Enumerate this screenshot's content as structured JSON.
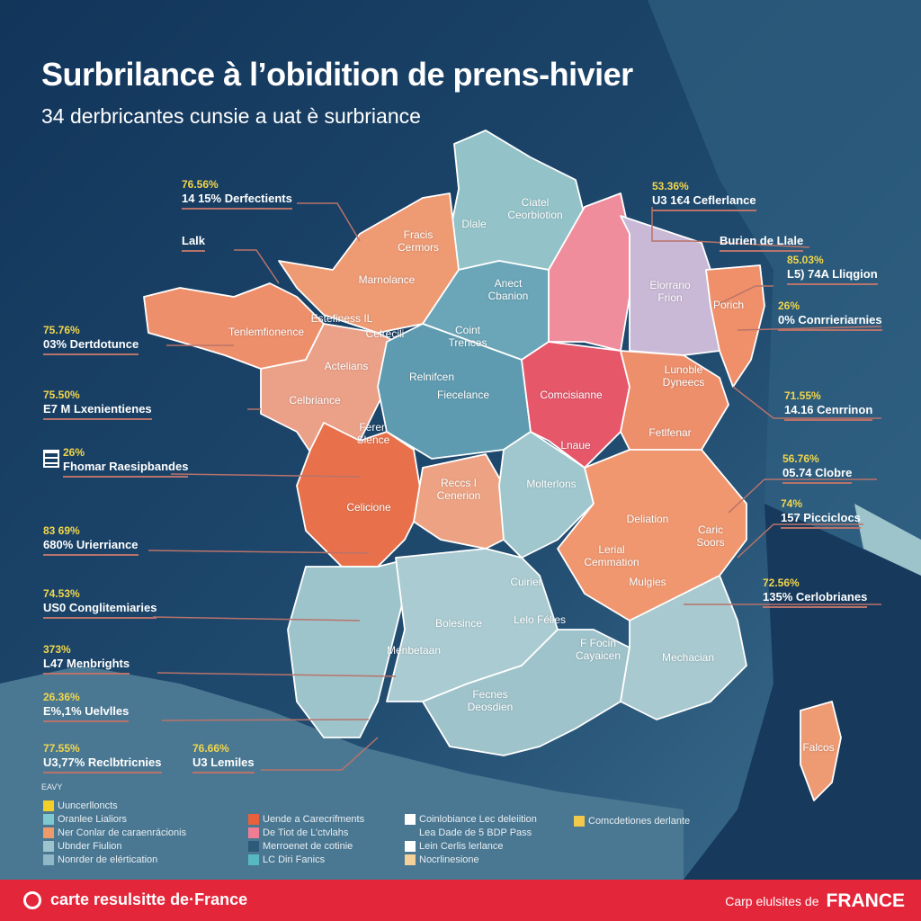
{
  "header": {
    "title": "Surbrilance à l’obidition de prens-hivier",
    "subtitle": "34 derbricantes cunsie a uat è surbriance"
  },
  "colors": {
    "navy": "#13395c",
    "slate": "#3b6d8a",
    "highlight": "#f2d64b",
    "footer": "#e3263a"
  },
  "callouts_left": [
    {
      "pct": "76.56%",
      "label": "14 15% Derfectients"
    },
    {
      "pct": "",
      "label": "Lalk"
    },
    {
      "pct": "75.76%",
      "label": "03% Dertdotunce"
    },
    {
      "pct": "75.50%",
      "label": "E7 M Lxenientienes"
    },
    {
      "pct": "26%",
      "label": "Fhomar Raesipbandes"
    },
    {
      "pct": "83 69%",
      "label": "680% Urierriance"
    },
    {
      "pct": "74.53%",
      "label": "US0 Conglitemiaries"
    },
    {
      "pct": "373%",
      "label": "L47 Menbrights"
    },
    {
      "pct": "26.36%",
      "label": "E%,1% Uelvlles"
    },
    {
      "pct": "77.55%",
      "label": "U3,77% Reclbtricnies"
    },
    {
      "pct": "76.66%",
      "label": "U3 Lemiles"
    }
  ],
  "callouts_right": [
    {
      "pct": "53.36%",
      "label": "U3 1€4 Ceflerlance"
    },
    {
      "pct": "",
      "label": "Burien de Llale"
    },
    {
      "pct": "85.03%",
      "label": "L5) 74A Lliqgion"
    },
    {
      "pct": "26%",
      "label": "0% Conrrieriarnies"
    },
    {
      "pct": "71.55%",
      "label": "14.16 Cenrrinon"
    },
    {
      "pct": "56.76%",
      "label": "05.74 Clobre"
    },
    {
      "pct": "74%",
      "label": "157 Picciclocs"
    },
    {
      "pct": "72.56%",
      "label": "135% Cerlobrianes"
    }
  ],
  "regions": [
    "Fracis Cermors",
    "Ciatel Ceorbiotion",
    "Dlale",
    "Marnolance",
    "Anect Cbanion",
    "Elorrano Frion",
    "Porich",
    "Estefiness IL",
    "Celrecili",
    "Coint Trences",
    "Tenlemfionence",
    "Actelians",
    "Relnifcen",
    "Fiecelance",
    "Comcisianne",
    "Lunoble Dyneecs",
    "Celbriance",
    "Feren Slence",
    "Lnaue",
    "Fetlfenar",
    "Celicione",
    "Reccs I Cenerion",
    "Molterlons",
    "Deliation",
    "Caric Soors",
    "Lerial Cemmation",
    "Mulgies",
    "Cuirier",
    "Bolesince",
    "Lelo Félies",
    "Menbetaan",
    "F Focin Cayaicen",
    "Mechacian",
    "Fecnes Deosdien",
    "Falcos"
  ],
  "legend": {
    "title": "EAVY",
    "items": [
      {
        "label": "Uuncerlloncts",
        "color": "#f2d028"
      },
      {
        "label": "Oranlee Lialiors",
        "color": "#7fc8cf"
      },
      {
        "label": "Ner Conlar de caraenrácionis",
        "color": "#ef9a6b"
      },
      {
        "label": "Ubnder Fiulion",
        "color": "#9dc4cc"
      },
      {
        "label": "Nonrder de elértication",
        "color": "#8fb7c6"
      },
      {
        "label": "Uende a Carecrifments",
        "color": "#e8603c"
      },
      {
        "label": "De Tiot de L’ctvlahs",
        "color": "#ef7e94"
      },
      {
        "label": "Merroenet de cotinie",
        "color": "#2d5a78"
      },
      {
        "label": "LC Diri Fanics",
        "color": "#57b8c2"
      },
      {
        "label": "Coinlobiance Lec deleiition",
        "color": "#ffffff"
      },
      {
        "label": "Lea Dade de 5 BDP Pass",
        "color": ""
      },
      {
        "label": "Lein Cerlis lerlance",
        "color": "#ffffff"
      },
      {
        "label": "Nocrlinesione",
        "color": "#f5d19a"
      },
      {
        "label": "Comcdetiones derlante",
        "color": "#f2c94c"
      }
    ]
  },
  "footer": {
    "left": "carte resulsitte de·France",
    "right_small": "Carp elulsites de",
    "right_big": "FRANCE"
  }
}
